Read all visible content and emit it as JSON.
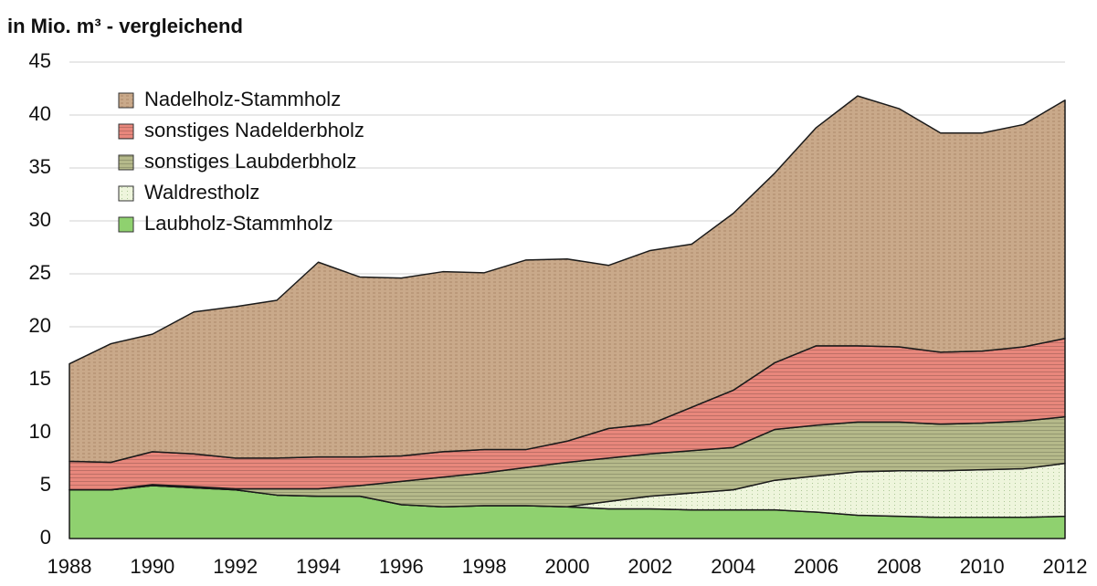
{
  "chart_data": {
    "type": "stacked-area",
    "title": "in Mio. m³ - vergleichend",
    "x": [
      1988,
      1989,
      1990,
      1991,
      1992,
      1993,
      1994,
      1995,
      1996,
      1997,
      1998,
      1999,
      2000,
      2001,
      2002,
      2003,
      2004,
      2005,
      2006,
      2007,
      2008,
      2009,
      2010,
      2011,
      2012
    ],
    "xlim": [
      1988,
      2012
    ],
    "xticks": [
      1988,
      1990,
      1992,
      1994,
      1996,
      1998,
      2000,
      2002,
      2004,
      2006,
      2008,
      2010,
      2012
    ],
    "ylim": [
      0,
      45
    ],
    "yticks": [
      0,
      5,
      10,
      15,
      20,
      25,
      30,
      35,
      40,
      45
    ],
    "grid": true,
    "series": [
      {
        "name": "Laubholz-Stammholz",
        "color": "#8fd16f",
        "values": [
          4.6,
          4.6,
          5.0,
          4.8,
          4.6,
          4.1,
          4.0,
          4.0,
          3.2,
          3.0,
          3.1,
          3.1,
          3.0,
          2.8,
          2.8,
          2.7,
          2.7,
          2.7,
          2.5,
          2.2,
          2.1,
          2.0,
          2.0,
          2.0,
          2.1
        ]
      },
      {
        "name": "Waldrestholz",
        "color": "#eef5dc",
        "values": [
          0,
          0,
          0,
          0,
          0,
          0,
          0,
          0,
          0,
          0,
          0,
          0,
          0,
          0.7,
          1.2,
          1.6,
          1.9,
          2.8,
          3.4,
          4.1,
          4.3,
          4.4,
          4.5,
          4.6,
          5.0
        ]
      },
      {
        "name": "sonstiges Laubderbholz",
        "color": "#b5b98a",
        "values": [
          0,
          0,
          0.1,
          0.1,
          0.1,
          0.6,
          0.7,
          1.0,
          2.2,
          2.8,
          3.1,
          3.6,
          4.2,
          4.1,
          4.0,
          4.0,
          4.0,
          4.8,
          4.8,
          4.7,
          4.6,
          4.4,
          4.4,
          4.5,
          4.4
        ]
      },
      {
        "name": "sonstiges Nadelderbholz",
        "color": "#e8877c",
        "values": [
          2.7,
          2.6,
          3.1,
          3.1,
          2.9,
          2.9,
          3.0,
          2.7,
          2.4,
          2.4,
          2.2,
          1.7,
          2.0,
          2.8,
          2.8,
          4.1,
          5.4,
          6.3,
          7.5,
          7.2,
          7.1,
          6.8,
          6.8,
          7.0,
          7.4
        ]
      },
      {
        "name": "Nadelholz-Stammholz",
        "color": "#c9a98a",
        "values": [
          9.2,
          11.2,
          11.1,
          13.4,
          14.3,
          14.9,
          18.4,
          17.0,
          16.8,
          17.0,
          16.7,
          17.9,
          17.2,
          15.4,
          16.4,
          15.4,
          16.7,
          17.9,
          20.6,
          23.6,
          22.5,
          20.7,
          20.6,
          21.0,
          22.5
        ]
      }
    ]
  }
}
